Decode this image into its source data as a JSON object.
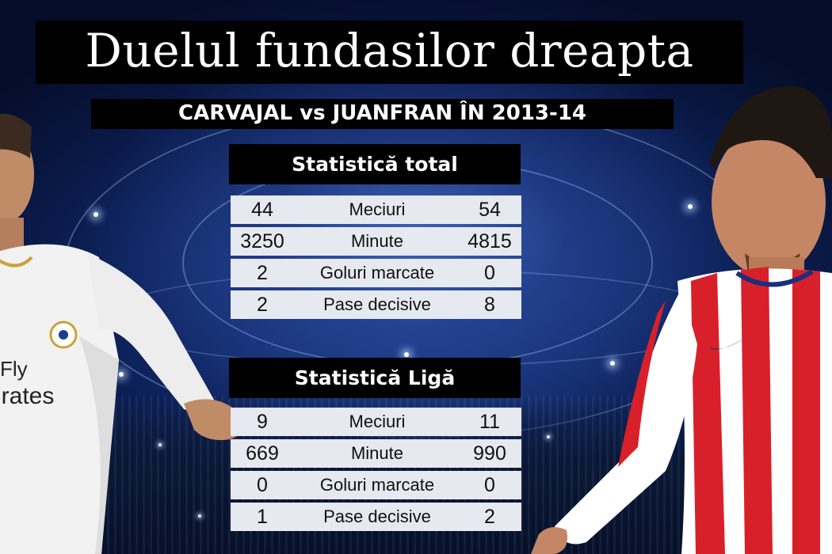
{
  "title": "Duelul fundasilor dreapta",
  "subtitle": "CARVAJAL vs JUANFRAN ÎN 2013-14",
  "sections": [
    {
      "heading": "Statistică total",
      "rows": [
        {
          "left": "44",
          "label": "Meciuri",
          "right": "54"
        },
        {
          "left": "3250",
          "label": "Minute",
          "right": "4815"
        },
        {
          "left": "2",
          "label": "Goluri marcate",
          "right": "0"
        },
        {
          "left": "2",
          "label": "Pase decisive",
          "right": "8"
        }
      ]
    },
    {
      "heading": "Statistică Ligă",
      "rows": [
        {
          "left": "9",
          "label": "Meciuri",
          "right": "11"
        },
        {
          "left": "669",
          "label": "Minute",
          "right": "990"
        },
        {
          "left": "0",
          "label": "Goluri marcate",
          "right": "0"
        },
        {
          "left": "1",
          "label": "Pase decisive",
          "right": "2"
        }
      ]
    }
  ],
  "players": {
    "left": {
      "kit_colors": [
        "#f4f4f4",
        "#c9a23a"
      ],
      "sponsor_text": "Fly\nEmirates"
    },
    "right": {
      "kit_colors": [
        "#d8202a",
        "#ffffff",
        "#1b2f7a"
      ]
    }
  }
}
